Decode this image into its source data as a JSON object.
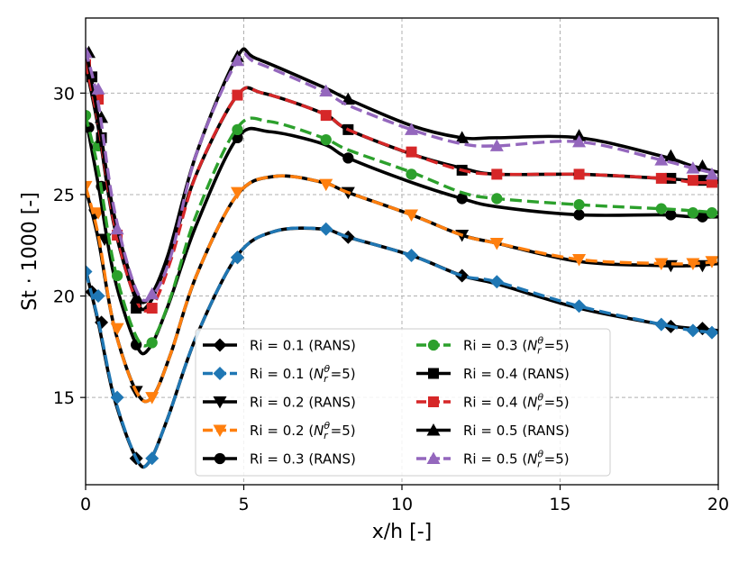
{
  "chart_data": {
    "type": "line",
    "title": "",
    "xlabel": "x/h [-]",
    "ylabel": "St · 1000 [-]",
    "xlim": [
      0,
      20
    ],
    "ylim": [
      10.7,
      33.7
    ],
    "xticks": [
      0,
      5,
      10,
      15,
      20
    ],
    "xtick_labels": [
      "0",
      "5",
      "10",
      "15",
      "20"
    ],
    "yticks": [
      15,
      20,
      25,
      30
    ],
    "ytick_labels": [
      "15",
      "20",
      "25",
      "30"
    ],
    "grid": true,
    "legend_position": "lower-center",
    "series": [
      {
        "name": "Ri = 0.1 (RANS)",
        "legend_label": "Ri = 0.1 (RANS)",
        "color": "#000000",
        "style": "solid",
        "marker": "diamond",
        "x": [
          0,
          0.4,
          0.9,
          1.6,
          2.0,
          2.6,
          3.5,
          4.8,
          6.0,
          7.5,
          8.3,
          10.3,
          11.9,
          13.0,
          15.6,
          18.2,
          19.2,
          20.0
        ],
        "y": [
          21.3,
          18.7,
          15.0,
          12.0,
          11.8,
          14.0,
          18.0,
          22.0,
          23.2,
          23.3,
          22.9,
          22.0,
          21.0,
          20.6,
          19.4,
          18.6,
          18.4,
          18.3
        ],
        "mx": [
          0.2,
          0.5,
          1.6,
          4.8,
          8.3,
          11.9,
          18.5,
          19.5
        ],
        "my": [
          20.2,
          18.7,
          12.0,
          21.9,
          22.9,
          21.0,
          18.5,
          18.4
        ]
      },
      {
        "name": "Ri = 0.1 (N_r^θ=5)",
        "legend_label": "Ri = 0.1 (",
        "legend_suffix": "=5)",
        "color": "#1f77b4",
        "style": "dashed",
        "marker": "diamond",
        "x": [
          0,
          0.4,
          0.9,
          1.6,
          2.0,
          2.6,
          3.5,
          4.8,
          6.0,
          7.5,
          8.3,
          10.3,
          11.9,
          13.0,
          15.6,
          18.2,
          19.2,
          20.0
        ],
        "y": [
          21.2,
          18.8,
          15.1,
          12.0,
          11.8,
          14.0,
          18.0,
          22.0,
          23.2,
          23.3,
          22.9,
          22.0,
          21.0,
          20.7,
          19.5,
          18.6,
          18.3,
          18.2
        ],
        "mx": [
          0.0,
          0.4,
          1.0,
          2.1,
          4.8,
          7.6,
          10.3,
          13.0,
          15.6,
          18.2,
          19.2,
          19.8
        ],
        "my": [
          21.2,
          20.0,
          15.0,
          12.0,
          21.9,
          23.3,
          22.0,
          20.7,
          19.5,
          18.6,
          18.3,
          18.2
        ]
      },
      {
        "name": "Ri = 0.2 (RANS)",
        "legend_label": "Ri = 0.2 (RANS)",
        "color": "#000000",
        "style": "solid",
        "marker": "triangle-down",
        "x": [
          0,
          0.4,
          0.9,
          1.6,
          2.1,
          2.7,
          3.5,
          4.8,
          6.0,
          7.5,
          8.3,
          10.3,
          11.9,
          13.0,
          15.6,
          18.2,
          19.2,
          20.0
        ],
        "y": [
          25.3,
          22.8,
          18.5,
          15.3,
          15.0,
          17.2,
          21.0,
          25.0,
          25.9,
          25.6,
          25.1,
          24.0,
          23.0,
          22.6,
          21.7,
          21.5,
          21.5,
          21.6
        ],
        "mx": [
          0.3,
          0.6,
          1.6,
          8.3,
          11.9,
          18.5,
          19.5
        ],
        "my": [
          24.0,
          22.8,
          15.3,
          25.1,
          23.0,
          21.5,
          21.5
        ]
      },
      {
        "name": "Ri = 0.2 (N_r^θ=5)",
        "legend_label": "Ri = 0.2 (",
        "legend_suffix": "=5)",
        "color": "#ff7f0e",
        "style": "dashed",
        "marker": "triangle-down",
        "x": [
          0,
          0.4,
          0.9,
          1.6,
          2.1,
          2.7,
          3.5,
          4.8,
          6.0,
          7.5,
          8.3,
          10.3,
          11.9,
          13.0,
          15.6,
          18.2,
          19.2,
          20.0
        ],
        "y": [
          25.4,
          23.0,
          18.5,
          15.3,
          15.0,
          17.2,
          21.0,
          25.0,
          25.9,
          25.6,
          25.1,
          24.0,
          23.0,
          22.6,
          21.8,
          21.6,
          21.6,
          21.7
        ],
        "mx": [
          0.0,
          0.4,
          1.0,
          2.1,
          4.8,
          7.6,
          10.3,
          13.0,
          15.6,
          18.2,
          19.2,
          19.8
        ],
        "my": [
          25.4,
          24.1,
          18.4,
          15.0,
          25.1,
          25.5,
          24.0,
          22.6,
          21.8,
          21.6,
          21.6,
          21.7
        ]
      },
      {
        "name": "Ri = 0.3 (RANS)",
        "legend_label": "Ri = 0.3 (RANS)",
        "color": "#000000",
        "style": "solid",
        "marker": "circle",
        "x": [
          0,
          0.4,
          0.9,
          1.6,
          2.0,
          2.6,
          3.5,
          4.8,
          5.8,
          7.5,
          8.3,
          10.3,
          11.9,
          13.0,
          15.6,
          18.2,
          19.2,
          20.0
        ],
        "y": [
          28.8,
          25.5,
          21.0,
          17.6,
          17.4,
          19.5,
          23.5,
          27.8,
          28.1,
          27.5,
          26.8,
          25.6,
          24.8,
          24.4,
          24.0,
          24.0,
          23.9,
          23.9
        ],
        "mx": [
          0.1,
          0.5,
          1.6,
          4.8,
          8.3,
          11.9,
          15.6,
          18.5,
          19.5
        ],
        "my": [
          28.3,
          25.4,
          17.6,
          27.8,
          26.8,
          24.8,
          24.0,
          24.0,
          23.9
        ]
      },
      {
        "name": "Ri = 0.3 (N_r^θ=5)",
        "legend_label": "Ri = 0.3 (",
        "legend_suffix": "=5)",
        "color": "#2ca02c",
        "style": "dashed",
        "marker": "circle",
        "x": [
          0,
          0.4,
          0.9,
          1.6,
          2.1,
          2.7,
          3.5,
          4.8,
          5.8,
          7.5,
          8.3,
          10.3,
          11.9,
          13.0,
          15.6,
          18.2,
          19.2,
          20.0
        ],
        "y": [
          28.9,
          26.2,
          21.5,
          18.0,
          17.8,
          20.0,
          24.0,
          28.3,
          28.6,
          27.8,
          27.2,
          26.1,
          25.1,
          24.8,
          24.5,
          24.3,
          24.2,
          24.1
        ],
        "mx": [
          0.0,
          0.4,
          1.0,
          2.1,
          4.8,
          7.6,
          10.3,
          13.0,
          15.6,
          18.2,
          19.2,
          19.8
        ],
        "my": [
          28.9,
          27.4,
          21.0,
          17.7,
          28.2,
          27.7,
          26.0,
          24.8,
          24.5,
          24.3,
          24.1,
          24.1
        ]
      },
      {
        "name": "Ri = 0.4 (RANS)",
        "legend_label": "Ri = 0.4 (RANS)",
        "color": "#000000",
        "style": "solid",
        "marker": "square",
        "x": [
          0,
          0.4,
          0.9,
          1.6,
          2.0,
          2.6,
          3.5,
          4.8,
          5.6,
          7.5,
          8.3,
          10.3,
          11.9,
          13.0,
          15.6,
          18.2,
          19.2,
          20.0
        ],
        "y": [
          31.4,
          28.3,
          23.5,
          19.8,
          19.6,
          21.8,
          26.0,
          29.9,
          30.0,
          29.0,
          28.2,
          27.0,
          26.3,
          26.0,
          26.0,
          25.8,
          25.7,
          25.7
        ],
        "mx": [
          0.2,
          0.5,
          1.6,
          8.3,
          11.9,
          18.5,
          19.5
        ],
        "my": [
          30.8,
          27.8,
          19.4,
          28.2,
          26.2,
          25.8,
          25.7
        ]
      },
      {
        "name": "Ri = 0.4 (N_r^θ=5)",
        "legend_label": "Ri = 0.4 (",
        "legend_suffix": "=5)",
        "color": "#d62728",
        "style": "dashed",
        "marker": "square",
        "x": [
          0,
          0.4,
          0.9,
          1.6,
          2.1,
          2.7,
          3.5,
          4.8,
          5.6,
          7.5,
          8.3,
          10.3,
          11.9,
          13.0,
          15.6,
          18.2,
          19.2,
          20.0
        ],
        "y": [
          31.5,
          28.5,
          23.6,
          19.8,
          19.5,
          21.8,
          26.0,
          29.9,
          30.0,
          29.0,
          28.2,
          27.0,
          26.2,
          26.0,
          26.0,
          25.8,
          25.6,
          25.6
        ],
        "mx": [
          0.0,
          0.4,
          1.0,
          2.1,
          4.8,
          7.6,
          10.3,
          13.0,
          15.6,
          18.2,
          19.2,
          19.8
        ],
        "my": [
          31.4,
          29.7,
          23.0,
          19.4,
          29.9,
          28.9,
          27.1,
          26.0,
          26.0,
          25.8,
          25.7,
          25.6
        ]
      },
      {
        "name": "Ri = 0.5 (RANS)",
        "legend_label": "Ri = 0.5 (RANS)",
        "color": "#000000",
        "style": "solid",
        "marker": "triangle-up",
        "x": [
          0,
          0.4,
          0.9,
          1.6,
          2.0,
          2.6,
          3.5,
          4.8,
          5.4,
          7.5,
          8.3,
          10.3,
          11.9,
          13.0,
          15.6,
          18.2,
          19.2,
          20.0
        ],
        "y": [
          32.2,
          28.8,
          24.0,
          20.2,
          19.9,
          22.0,
          27.0,
          31.8,
          31.7,
          30.3,
          29.7,
          28.4,
          27.8,
          27.8,
          27.8,
          26.9,
          26.4,
          26.1
        ],
        "mx": [
          0.1,
          0.5,
          1.6,
          4.8,
          8.3,
          11.9,
          15.6,
          18.5,
          19.5
        ],
        "my": [
          32.0,
          28.8,
          19.9,
          31.8,
          29.7,
          27.8,
          27.9,
          26.9,
          26.4
        ]
      },
      {
        "name": "Ri = 0.5 (N_r^θ=5)",
        "legend_label": "Ri = 0.5 (",
        "legend_suffix": "=5)",
        "color": "#9467bd",
        "style": "dashed",
        "marker": "triangle-up",
        "x": [
          0,
          0.4,
          0.9,
          1.6,
          2.1,
          2.7,
          3.5,
          4.8,
          5.4,
          7.5,
          8.3,
          10.3,
          11.9,
          13.0,
          15.6,
          18.2,
          19.2,
          20.0
        ],
        "y": [
          32.1,
          29.5,
          24.3,
          20.3,
          20.0,
          22.0,
          27.0,
          31.6,
          31.5,
          30.1,
          29.4,
          28.2,
          27.5,
          27.4,
          27.6,
          26.7,
          26.3,
          26.0
        ],
        "mx": [
          0.0,
          0.4,
          1.0,
          2.1,
          4.8,
          7.6,
          10.3,
          13.0,
          15.6,
          18.2,
          19.2,
          19.8
        ],
        "my": [
          32.0,
          30.2,
          23.3,
          20.1,
          31.6,
          30.1,
          28.2,
          27.4,
          27.6,
          26.7,
          26.3,
          26.0
        ]
      }
    ]
  }
}
